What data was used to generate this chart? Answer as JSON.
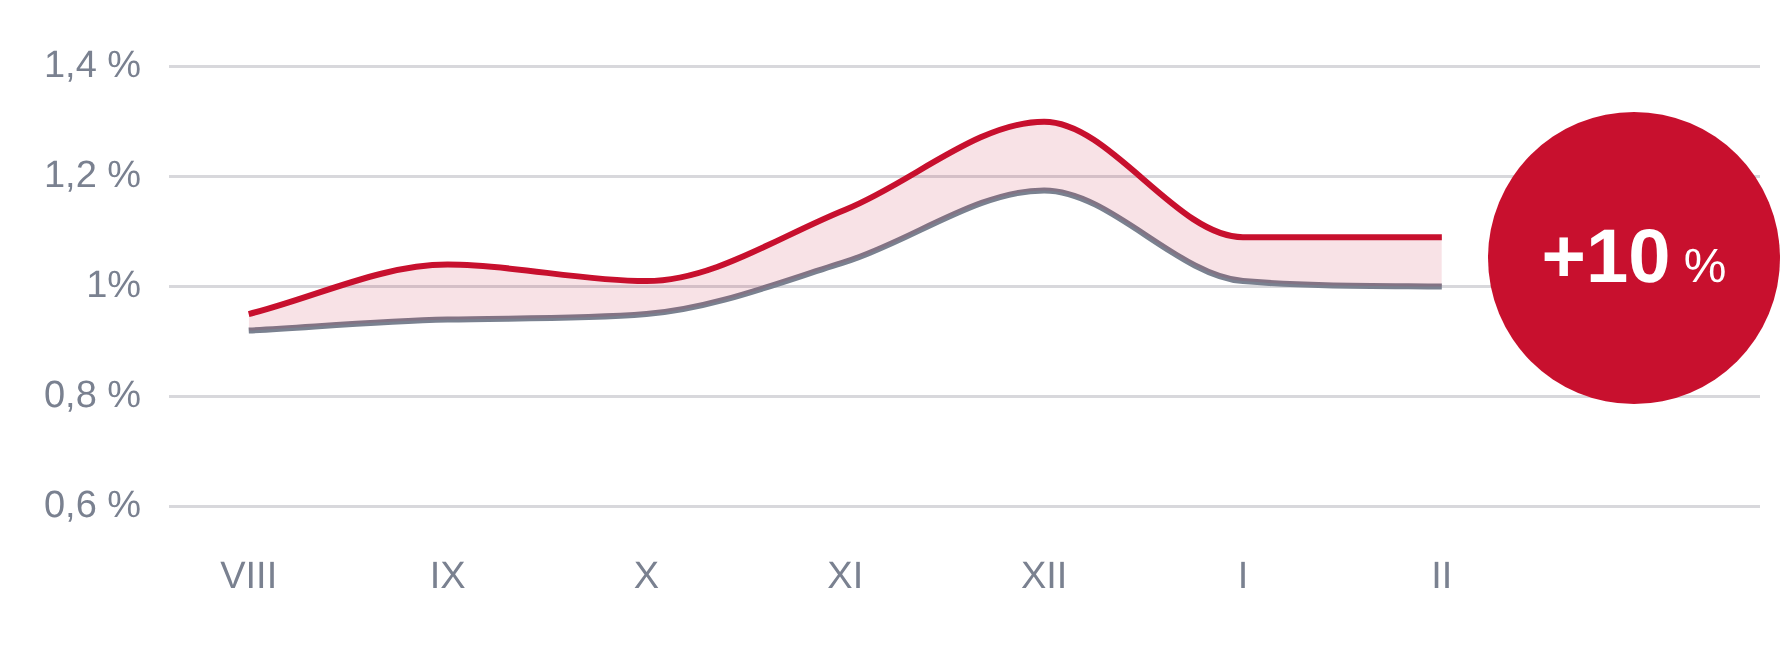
{
  "chart_data": {
    "type": "line",
    "categories": [
      "VIII",
      "IX",
      "X",
      "XI",
      "XII",
      "I",
      "II"
    ],
    "series": [
      {
        "color": "#c8102e",
        "values": [
          0.95,
          1.04,
          1.01,
          1.14,
          1.3,
          1.09,
          1.09
        ],
        "lower": [
          0.92,
          0.94,
          0.95,
          1.045,
          1.175,
          1.01,
          1.0
        ],
        "upper": [
          0.95,
          1.04,
          1.01,
          1.14,
          1.3,
          1.09,
          1.09
        ]
      },
      {
        "color": "#7a8190",
        "values": [
          0.92,
          0.94,
          0.95,
          1.045,
          1.175,
          1.01,
          1.0
        ]
      }
    ],
    "ylim": [
      0.6,
      1.4
    ],
    "yticks": [
      {
        "value": 0.6,
        "label": "0,6 %"
      },
      {
        "value": 0.8,
        "label": "0,8 %"
      },
      {
        "value": 1,
        "label": "1%"
      },
      {
        "value": 1.2,
        "label": "1,2 %"
      },
      {
        "value": 1.4,
        "label": "1,4 %"
      }
    ],
    "grid": "y",
    "legend": false,
    "marker": "none",
    "line_style": "solid",
    "annotations": [
      "+10 %"
    ]
  }
}
